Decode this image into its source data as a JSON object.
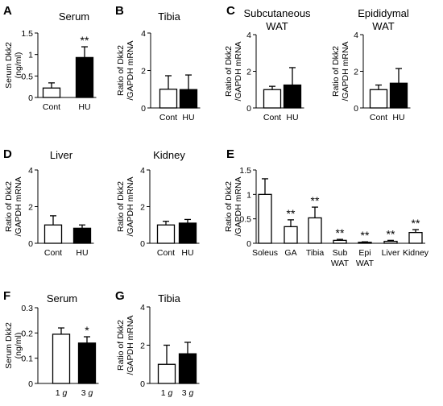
{
  "figure": {
    "panel_letters": [
      "A",
      "B",
      "C",
      "D",
      "E",
      "F",
      "G"
    ]
  },
  "chart_data": [
    {
      "type": "bar",
      "panel": "A",
      "title": "Serum",
      "ylabel_lines": [
        "Serum Dkk2",
        "(ng/ml)"
      ],
      "ylim": [
        0,
        1.5
      ],
      "yticks": [
        0,
        0.5,
        1,
        1.5
      ],
      "ytick_labels": [
        "0",
        "0.5",
        "1",
        "1.5"
      ],
      "categories": [
        "Cont",
        "HU"
      ],
      "values": [
        0.22,
        0.93
      ],
      "errors": [
        0.12,
        0.25
      ],
      "fills": [
        "#ffffff",
        "#000000"
      ],
      "significance": [
        "",
        "**"
      ]
    },
    {
      "type": "bar",
      "panel": "B",
      "title": "Tibia",
      "ylabel_lines": [
        "Ratio of Dkk2",
        "/GAPDH mRNA"
      ],
      "ylim": [
        0,
        4
      ],
      "yticks": [
        0,
        2,
        4
      ],
      "ytick_labels": [
        "0",
        "2",
        "4"
      ],
      "categories": [
        "Cont",
        "HU"
      ],
      "values": [
        1.0,
        0.98
      ],
      "errors": [
        0.72,
        0.78
      ],
      "fills": [
        "#ffffff",
        "#000000"
      ],
      "significance": [
        "",
        ""
      ]
    },
    {
      "type": "bar",
      "panel": "C",
      "title_lines": [
        "Subcutaneous",
        "WAT"
      ],
      "ylabel_lines": [
        "Ratio of Dkk2",
        "/GAPDH mRNA"
      ],
      "ylim": [
        0,
        4
      ],
      "yticks": [
        0,
        2,
        4
      ],
      "ytick_labels": [
        "0",
        "2",
        "4"
      ],
      "categories": [
        "Cont",
        "HU"
      ],
      "values": [
        1.0,
        1.25
      ],
      "errors": [
        0.18,
        0.95
      ],
      "fills": [
        "#ffffff",
        "#000000"
      ],
      "significance": [
        "",
        ""
      ]
    },
    {
      "type": "bar",
      "panel": "C2",
      "title_lines": [
        "Epididymal",
        "WAT"
      ],
      "ylabel_lines": [
        "Ratio of Dkk2",
        "/GAPDH mRNA"
      ],
      "ylim": [
        0,
        4
      ],
      "yticks": [
        0,
        2,
        4
      ],
      "ytick_labels": [
        "0",
        "2",
        "4"
      ],
      "categories": [
        "Cont",
        "HU"
      ],
      "values": [
        1.0,
        1.35
      ],
      "errors": [
        0.25,
        0.8
      ],
      "fills": [
        "#ffffff",
        "#000000"
      ],
      "significance": [
        "",
        ""
      ]
    },
    {
      "type": "bar",
      "panel": "D",
      "title": "Liver",
      "ylabel_lines": [
        "Ratio of Dkk2",
        "/GAPDH mRNA"
      ],
      "ylim": [
        0,
        4
      ],
      "yticks": [
        0,
        2,
        4
      ],
      "ytick_labels": [
        "0",
        "2",
        "4"
      ],
      "categories": [
        "Cont",
        "HU"
      ],
      "values": [
        1.0,
        0.82
      ],
      "errors": [
        0.5,
        0.18
      ],
      "fills": [
        "#ffffff",
        "#000000"
      ],
      "significance": [
        "",
        ""
      ]
    },
    {
      "type": "bar",
      "panel": "D2",
      "title": "Kidney",
      "ylabel_lines": [
        "Ratio of Dkk2",
        "/GAPDH mRNA"
      ],
      "ylim": [
        0,
        4
      ],
      "yticks": [
        0,
        2,
        4
      ],
      "ytick_labels": [
        "0",
        "2",
        "4"
      ],
      "categories": [
        "Cont",
        "HU"
      ],
      "values": [
        1.0,
        1.1
      ],
      "errors": [
        0.2,
        0.2
      ],
      "fills": [
        "#ffffff",
        "#000000"
      ],
      "significance": [
        "",
        ""
      ]
    },
    {
      "type": "bar",
      "panel": "E",
      "ylabel_lines": [
        "Ratio of Dkk2",
        "/GAPDH mRNA"
      ],
      "ylim": [
        0,
        1.5
      ],
      "yticks": [
        0,
        0.5,
        1,
        1.5
      ],
      "ytick_labels": [
        "0",
        "0.5",
        "1",
        "1.5"
      ],
      "categories": [
        "Soleus",
        "GA",
        "Tibia",
        "Sub WAT",
        "Epi WAT",
        "Liver",
        "Kidney"
      ],
      "category_lines": [
        [
          "Soleus"
        ],
        [
          "GA"
        ],
        [
          "Tibia"
        ],
        [
          "Sub",
          "WAT"
        ],
        [
          "Epi",
          "WAT"
        ],
        [
          "Liver"
        ],
        [
          "Kidney"
        ]
      ],
      "values": [
        1.0,
        0.34,
        0.52,
        0.06,
        0.02,
        0.04,
        0.22
      ],
      "errors": [
        0.32,
        0.14,
        0.22,
        0.02,
        0.01,
        0.02,
        0.06
      ],
      "fills": [
        "#ffffff",
        "#ffffff",
        "#ffffff",
        "#ffffff",
        "#ffffff",
        "#ffffff",
        "#ffffff"
      ],
      "significance": [
        "",
        "**",
        "**",
        "**",
        "**",
        "**",
        "**"
      ]
    },
    {
      "type": "bar",
      "panel": "F",
      "title": "Serum",
      "ylabel_lines": [
        "Serum Dkk2",
        "(ng/ml)"
      ],
      "ylim": [
        0,
        0.3
      ],
      "yticks": [
        0,
        0.1,
        0.2,
        0.3
      ],
      "ytick_labels": [
        "0",
        "0.1",
        "0.2",
        "0.3"
      ],
      "categories": [
        "1 g",
        "3 g"
      ],
      "category_parts": [
        [
          "1 ",
          "g"
        ],
        [
          "3 ",
          "g"
        ]
      ],
      "values": [
        0.195,
        0.16
      ],
      "errors": [
        0.025,
        0.025
      ],
      "fills": [
        "#ffffff",
        "#000000"
      ],
      "significance": [
        "",
        "*"
      ]
    },
    {
      "type": "bar",
      "panel": "G",
      "title": "Tibia",
      "ylabel_lines": [
        "Ratio of Dkk2",
        "/GAPDH mRNA"
      ],
      "ylim": [
        0,
        4
      ],
      "yticks": [
        0,
        2,
        4
      ],
      "ytick_labels": [
        "0",
        "2",
        "4"
      ],
      "categories": [
        "1 g",
        "3 g"
      ],
      "category_parts": [
        [
          "1 ",
          "g"
        ],
        [
          "3 ",
          "g"
        ]
      ],
      "values": [
        1.0,
        1.55
      ],
      "errors": [
        1.0,
        0.6
      ],
      "fills": [
        "#ffffff",
        "#000000"
      ],
      "significance": [
        "",
        ""
      ]
    }
  ]
}
